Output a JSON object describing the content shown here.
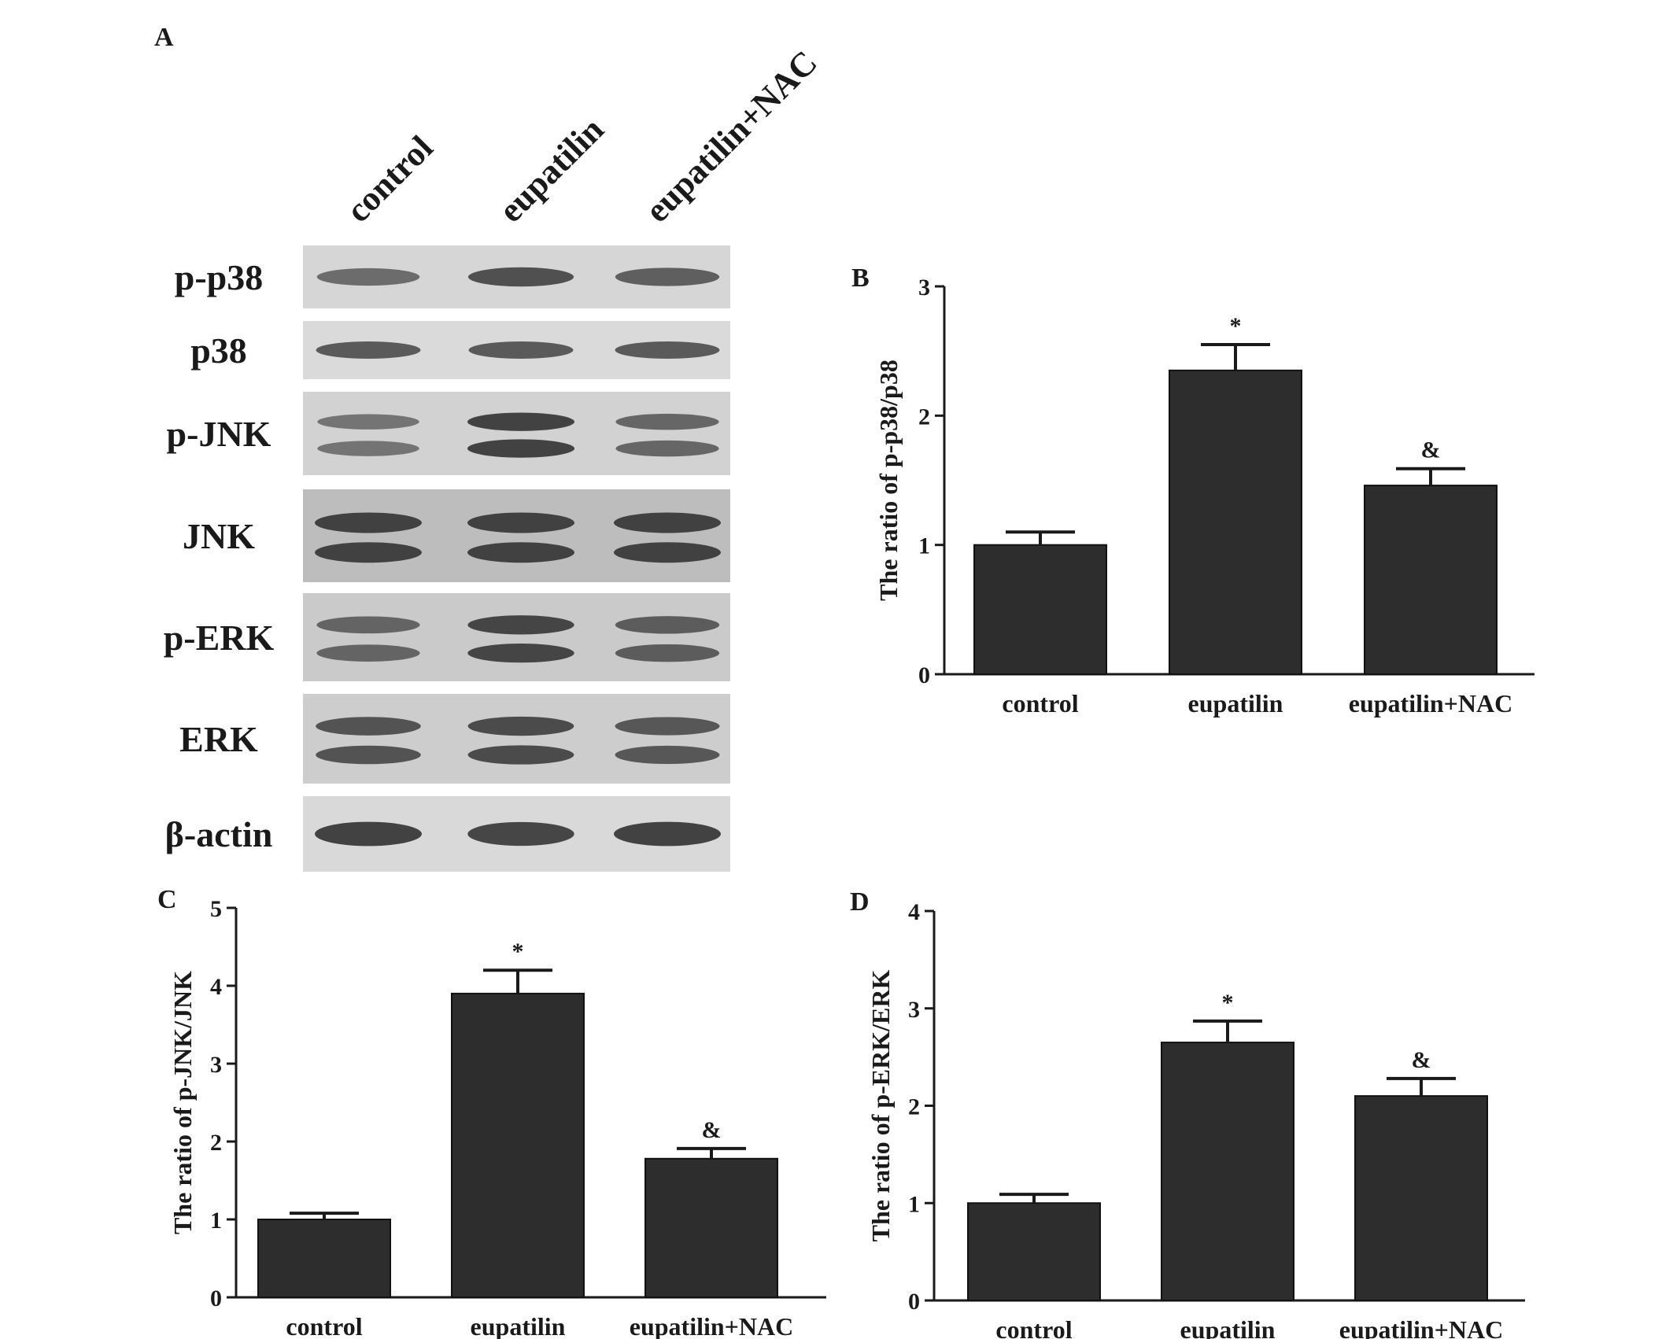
{
  "figure": {
    "panel_letters": [
      "A",
      "B",
      "C",
      "D"
    ]
  },
  "blot": {
    "lanes": [
      "control",
      "eupatilin",
      "eupatilin+NAC"
    ],
    "rows": [
      {
        "label": "p-p38",
        "bands": 1,
        "intensity": [
          0.55,
          0.85,
          0.7
        ],
        "background": "#d6d6d6"
      },
      {
        "label": "p38",
        "bands": 1,
        "intensity": [
          0.75,
          0.75,
          0.75
        ],
        "background": "#dadada"
      },
      {
        "label": "p-JNK",
        "bands": 2,
        "intensity": [
          0.45,
          1.0,
          0.6
        ],
        "background": "#d2d2d2"
      },
      {
        "label": "JNK",
        "bands": 2,
        "intensity": [
          1.0,
          1.0,
          1.0
        ],
        "background": "#bdbdbd"
      },
      {
        "label": "p-ERK",
        "bands": 2,
        "intensity": [
          0.6,
          0.95,
          0.7
        ],
        "background": "#cacaca"
      },
      {
        "label": "ERK",
        "bands": 2,
        "intensity": [
          0.8,
          0.9,
          0.75
        ],
        "background": "#cdcdcd"
      },
      {
        "label": "β-actin",
        "bands": 1,
        "intensity": [
          1.0,
          0.95,
          1.0
        ],
        "background": "#d9d9d9"
      }
    ]
  },
  "colors": {
    "bar": "#2d2d2d",
    "band": "#3a3a3a",
    "axis": "#1a1a1a"
  },
  "chart_data": [
    {
      "panel": "B",
      "type": "bar",
      "categories": [
        "control",
        "eupatilin",
        "eupatilin+NAC"
      ],
      "values": [
        1.0,
        2.35,
        1.46
      ],
      "errors": [
        0.1,
        0.2,
        0.13
      ],
      "annotations": [
        "",
        "*",
        "&"
      ],
      "ylabel": "The ratio of p-p38/p38",
      "ylim": [
        0,
        3
      ],
      "yticks": [
        "0",
        "1",
        "2",
        "3"
      ]
    },
    {
      "panel": "C",
      "type": "bar",
      "categories": [
        "control",
        "eupatilin",
        "eupatilin+NAC"
      ],
      "values": [
        1.0,
        3.9,
        1.78
      ],
      "errors": [
        0.08,
        0.3,
        0.13
      ],
      "annotations": [
        "",
        "*",
        "&"
      ],
      "ylabel": "The ratio of p-JNK/JNK",
      "ylim": [
        0,
        5
      ],
      "yticks": [
        "0",
        "1",
        "2",
        "3",
        "4",
        "5"
      ]
    },
    {
      "panel": "D",
      "type": "bar",
      "categories": [
        "control",
        "eupatilin",
        "eupatilin+NAC"
      ],
      "values": [
        1.0,
        2.65,
        2.1
      ],
      "errors": [
        0.09,
        0.22,
        0.18
      ],
      "annotations": [
        "",
        "*",
        "&"
      ],
      "ylabel": "The ratio of p-ERK/ERK",
      "ylim": [
        0,
        4
      ],
      "yticks": [
        "0",
        "1",
        "2",
        "3",
        "4"
      ]
    }
  ]
}
